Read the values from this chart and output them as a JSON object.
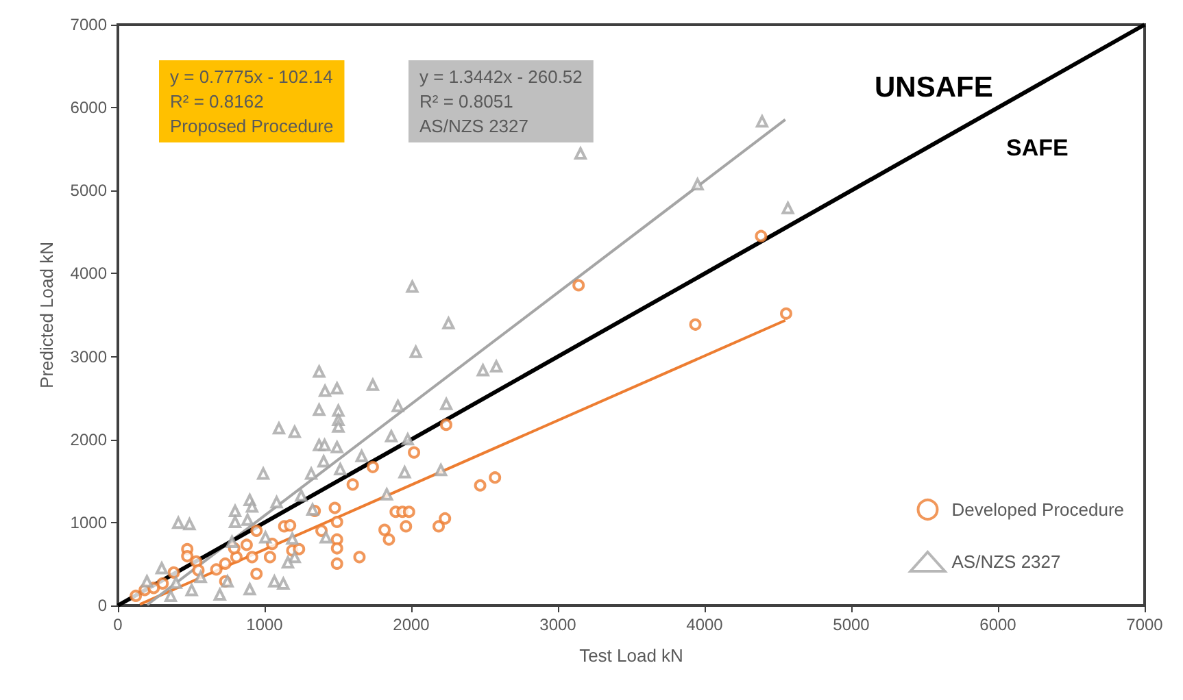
{
  "chart_data": {
    "type": "scatter",
    "xlabel": "Test Load kN",
    "ylabel": "Predicted Load kN",
    "xlim": [
      0,
      7000
    ],
    "ylim": [
      0,
      7000
    ],
    "xticks": [
      0,
      1000,
      2000,
      3000,
      4000,
      5000,
      6000,
      7000
    ],
    "yticks": [
      0,
      1000,
      2000,
      3000,
      4000,
      5000,
      6000,
      7000
    ],
    "grid": false,
    "legend": "bottom right",
    "annotations": [
      "y = 0.7775x - 102.14\nR² = 0.8162\nProposed Procedure",
      "y = 1.3442x - 260.52\nR² = 0.8051\nAS/NZS 2327",
      "UNSAFE",
      "SAFE"
    ],
    "series": [
      {
        "name": "Developed Procedure",
        "type": "scatter",
        "marker": "circle",
        "color": "#ed7d31",
        "x": [
          3141,
          3937,
          4385,
          4556,
          2238,
          2019,
          2470,
          2571,
          1894,
          1940,
          1985,
          1818,
          1848,
          1964,
          2187,
          2230,
          473,
          473,
          534,
          549,
          671,
          732,
          808,
          878,
          945,
          1052,
          1134,
          1189,
          1235,
          1342,
          1388,
          1479,
          1494,
          1494,
          1494,
          1494,
          1647,
          1601,
          1738,
          945,
          732,
          381,
          122,
          183,
          305,
          244,
          1037,
          1174,
          793,
          915
        ],
        "values": [
          3859,
          3386,
          4452,
          3518,
          2178,
          1844,
          1447,
          1542,
          1129,
          1129,
          1129,
          911,
          795,
          954,
          954,
          1049,
          679,
          594,
          530,
          424,
          434,
          504,
          583,
          731,
          901,
          742,
          954,
          663,
          679,
          1139,
          901,
          1176,
          1007,
          795,
          689,
          504,
          583,
          1458,
          1669,
          382,
          291,
          397,
          116,
          186,
          265,
          211,
          583,
          965,
          689,
          583
        ]
      },
      {
        "name": "AS/NZS 2327",
        "type": "scatter",
        "marker": "triangle",
        "color": "#a5a5a5",
        "x": [
          4392,
          3154,
          3952,
          4568,
          2007,
          2254,
          2031,
          2489,
          2580,
          1909,
          2239,
          1864,
          1976,
          1955,
          2202,
          1833,
          1372,
          1412,
          1494,
          1738,
          1372,
          1503,
          1503,
          1503,
          1098,
          1205,
          1372,
          1409,
          1494,
          1662,
          1516,
          1318,
          1403,
          991,
          1082,
          899,
          799,
          799,
          884,
          915,
          412,
          488,
          1250,
          1327,
          1418,
          1205,
          1159,
          1067,
          1128,
          899,
          695,
          747,
          503,
          299,
          198,
          360,
          396,
          564,
          1006,
          778,
          1189
        ],
        "values": [
          5835,
          5448,
          5076,
          4790,
          3843,
          3402,
          3057,
          2835,
          2882,
          2405,
          2428,
          2040,
          2003,
          1606,
          1633,
          1340,
          2819,
          2587,
          2618,
          2660,
          2358,
          2348,
          2237,
          2157,
          2135,
          2093,
          1934,
          1934,
          1908,
          1801,
          1643,
          1590,
          1738,
          1590,
          1245,
          1272,
          1139,
          1007,
          1033,
          1192,
          996,
          980,
          1325,
          1156,
          822,
          583,
          520,
          291,
          265,
          196,
          132,
          291,
          186,
          450,
          291,
          116,
          275,
          345,
          822,
          768,
          806
        ]
      },
      {
        "type": "line",
        "color": "#ed7d31",
        "x": [
          150,
          4550
        ],
        "values": [
          14,
          3436
        ]
      },
      {
        "type": "line",
        "color": "#a5a5a5",
        "x": [
          200,
          4550
        ],
        "values": [
          8,
          5855
        ]
      },
      {
        "type": "line",
        "color": "#000000",
        "x": [
          0,
          7000
        ],
        "values": [
          0,
          7000
        ]
      }
    ]
  }
}
